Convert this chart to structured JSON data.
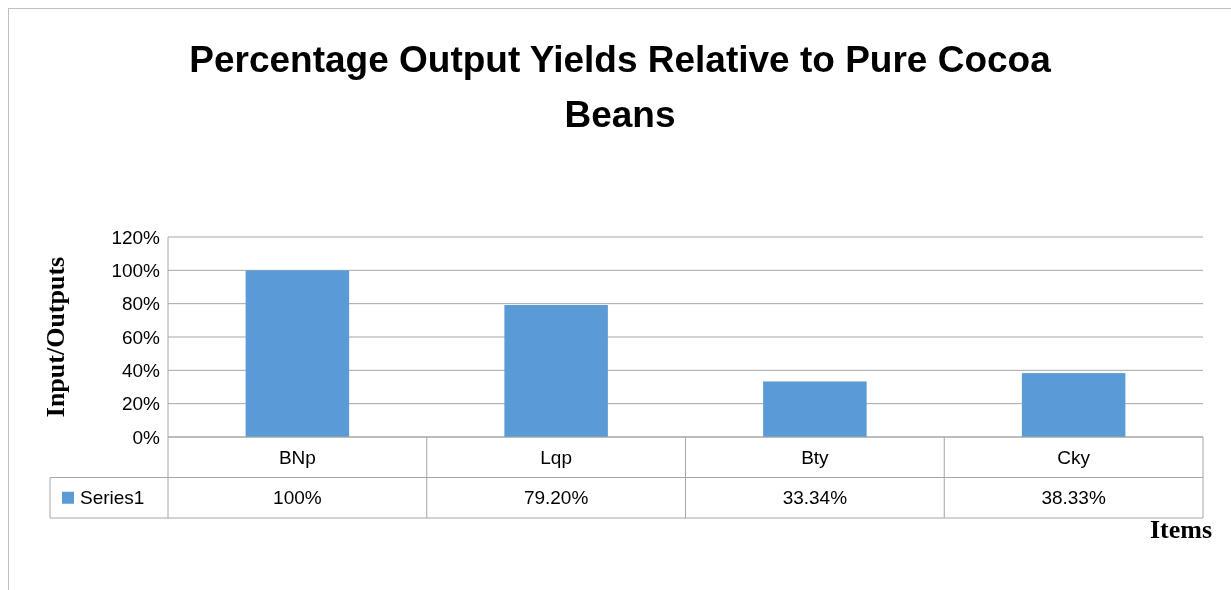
{
  "chart_data": {
    "type": "bar",
    "title": "Percentage Output Yields Relative to Pure Cocoa Beans",
    "xlabel": "Items",
    "ylabel": "Input/Outputs",
    "categories": [
      "BNp",
      "Lqp",
      "Bty",
      "Cky"
    ],
    "series": [
      {
        "name": "Series1",
        "color": "#5b9bd5",
        "values": [
          100,
          79.2,
          33.34,
          38.33
        ],
        "value_labels": [
          "100%",
          "79.20%",
          "33.34%",
          "38.33%"
        ]
      }
    ],
    "ylim": [
      0,
      120
    ],
    "yticks": [
      {
        "value": 0,
        "label": "0%"
      },
      {
        "value": 20,
        "label": "20%"
      },
      {
        "value": 40,
        "label": "40%"
      },
      {
        "value": 60,
        "label": "60%"
      },
      {
        "value": 80,
        "label": "80%"
      },
      {
        "value": 100,
        "label": "100%"
      },
      {
        "value": 120,
        "label": "120%"
      }
    ],
    "grid": "y",
    "legend": "bottom"
  }
}
